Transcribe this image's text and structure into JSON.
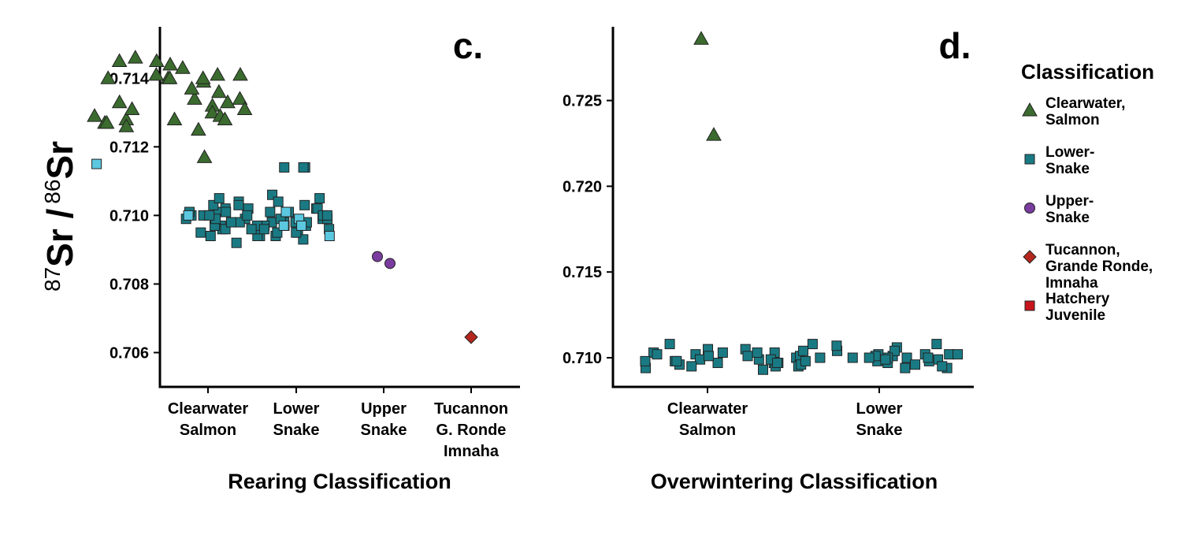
{
  "y_label": {
    "iso_a": "87",
    "sr_a": "Sr /",
    "iso_b": "86",
    "sr_b": "Sr"
  },
  "legend": {
    "title": "Classification",
    "items": [
      {
        "label": "Clearwater,\nSalmon",
        "shape": "triangle",
        "color": "#3b6b2f"
      },
      {
        "label": "Lower-\nSnake",
        "shape": "square",
        "color": "#1a7a84"
      },
      {
        "label": "Upper-\nSnake",
        "shape": "circle",
        "color": "#7a3c9e"
      },
      {
        "label": "Tucannon,\nGrande Ronde,\nImnaha",
        "shape": "diamond",
        "color": "#b5271e"
      },
      {
        "label": "Hatchery\nJuvenile",
        "shape": "square",
        "color": "#c8141c"
      }
    ]
  },
  "chart_data": [
    {
      "type": "scatter",
      "panel_label": "c.",
      "xlabel": "Rearing Classification",
      "ylabel": "87Sr / 86Sr",
      "categories": [
        "Clearwater\nSalmon",
        "Lower\nSnake",
        "Upper\nSnake",
        "Tucannon\nG. Ronde\nImnaha"
      ],
      "ylim": [
        0.705,
        0.7155
      ],
      "yticks": [
        "0.706",
        "0.708",
        "0.710",
        "0.712",
        "0.714"
      ],
      "series": [
        {
          "shape": "triangle",
          "color": "#3b6b2f",
          "points": [
            [
              1,
              0.7144
            ],
            [
              1,
              0.7134
            ],
            [
              1,
              0.7128
            ],
            [
              1,
              0.7132
            ],
            [
              1,
              0.7125
            ],
            [
              1,
              0.7117
            ],
            [
              1,
              0.7141
            ],
            [
              1,
              0.7143
            ],
            [
              1,
              0.7145
            ],
            [
              1,
              0.7146
            ],
            [
              1,
              0.714
            ],
            [
              1,
              0.7145
            ],
            [
              1,
              0.714
            ],
            [
              1,
              0.714
            ],
            [
              1,
              0.7141
            ],
            [
              1,
              0.7139
            ],
            [
              1,
              0.7141
            ],
            [
              1,
              0.714
            ],
            [
              1,
              0.7136
            ],
            [
              1,
              0.7134
            ],
            [
              1,
              0.7133
            ],
            [
              1,
              0.713
            ],
            [
              1,
              0.7129
            ],
            [
              1,
              0.7128
            ],
            [
              1,
              0.7127
            ],
            [
              1,
              0.7133
            ],
            [
              1,
              0.7131
            ],
            [
              1,
              0.7129
            ],
            [
              1,
              0.7127
            ],
            [
              1,
              0.7126
            ],
            [
              1,
              0.7131
            ],
            [
              1,
              0.7128
            ],
            [
              1,
              0.7137
            ]
          ]
        },
        {
          "shape": "square",
          "color": "#1a7a84",
          "points": [
            [
              2,
              0.7106
            ],
            [
              2,
              0.7104
            ],
            [
              2,
              0.7102
            ],
            [
              2,
              0.7101
            ],
            [
              2,
              0.71
            ],
            [
              2,
              0.7099
            ],
            [
              2,
              0.7098
            ],
            [
              2,
              0.7097
            ],
            [
              2,
              0.7096
            ],
            [
              2,
              0.7095
            ],
            [
              2,
              0.7094
            ],
            [
              2,
              0.7093
            ],
            [
              2,
              0.7103
            ],
            [
              2,
              0.7101
            ],
            [
              2,
              0.7099
            ],
            [
              2,
              0.7098
            ],
            [
              2,
              0.7097
            ],
            [
              2,
              0.7095
            ],
            [
              2,
              0.7094
            ],
            [
              2,
              0.7092
            ],
            [
              2,
              0.7102
            ],
            [
              2,
              0.71
            ],
            [
              2,
              0.7099
            ],
            [
              2,
              0.7097
            ],
            [
              2,
              0.7096
            ],
            [
              2,
              0.7094
            ],
            [
              2,
              0.7102
            ],
            [
              2,
              0.7101
            ],
            [
              2,
              0.7099
            ],
            [
              2,
              0.7098
            ],
            [
              2,
              0.7097
            ],
            [
              2,
              0.7096
            ],
            [
              2,
              0.7094
            ],
            [
              2,
              0.7103
            ],
            [
              2,
              0.7101
            ],
            [
              2,
              0.71
            ],
            [
              2,
              0.7098
            ],
            [
              2,
              0.7096
            ],
            [
              2,
              0.7095
            ],
            [
              2,
              0.7104
            ],
            [
              2,
              0.7102
            ],
            [
              2,
              0.71
            ],
            [
              2,
              0.7098
            ],
            [
              2,
              0.7097
            ],
            [
              2,
              0.7095
            ],
            [
              2,
              0.7105
            ],
            [
              2,
              0.7103
            ],
            [
              2,
              0.7101
            ],
            [
              2,
              0.7099
            ],
            [
              2,
              0.7097
            ],
            [
              2,
              0.7096
            ],
            [
              2,
              0.7105
            ],
            [
              2,
              0.71
            ],
            [
              2,
              0.7098
            ],
            [
              2,
              0.7096
            ],
            [
              2,
              0.71
            ],
            [
              2,
              0.7099
            ],
            [
              2,
              0.7114
            ],
            [
              2,
              0.7114
            ],
            [
              2,
              0.7114
            ]
          ]
        },
        {
          "shape": "square",
          "color": "#5bc8e0",
          "points": [
            [
              1,
              0.7115
            ],
            [
              2,
              0.71
            ],
            [
              2,
              0.7101
            ],
            [
              2,
              0.7097
            ],
            [
              2,
              0.7094
            ],
            [
              2,
              0.7099
            ],
            [
              2,
              0.7097
            ]
          ]
        },
        {
          "shape": "circle",
          "color": "#7a3c9e",
          "points": [
            [
              3,
              0.7088
            ],
            [
              3,
              0.7086
            ]
          ]
        },
        {
          "shape": "diamond",
          "color": "#b5271e",
          "points": [
            [
              4,
              0.70645
            ]
          ]
        }
      ]
    },
    {
      "type": "scatter",
      "panel_label": "d.",
      "xlabel": "Overwintering Classification",
      "ylabel": "",
      "categories": [
        "Clearwater\nSalmon",
        "Lower\nSnake"
      ],
      "ylim": [
        0.7083,
        0.7293
      ],
      "yticks": [
        "0.710",
        "0.715",
        "0.720",
        "0.725"
      ],
      "series": [
        {
          "shape": "triangle",
          "color": "#3b6b2f",
          "points": [
            [
              1,
              0.7286
            ],
            [
              1,
              0.723
            ]
          ]
        },
        {
          "shape": "square",
          "color": "#1a7a84",
          "points": [
            [
              2,
              0.7102
            ],
            [
              2,
              0.71
            ],
            [
              2,
              0.7098
            ],
            [
              2,
              0.7096
            ],
            [
              2,
              0.7094
            ],
            [
              2,
              0.7103
            ],
            [
              2,
              0.7101
            ],
            [
              2,
              0.7099
            ],
            [
              2,
              0.7097
            ],
            [
              2,
              0.7108
            ],
            [
              2,
              0.7106
            ],
            [
              2,
              0.7104
            ],
            [
              2,
              0.7102
            ],
            [
              2,
              0.71
            ],
            [
              2,
              0.7098
            ],
            [
              2,
              0.7105
            ],
            [
              2,
              0.7103
            ],
            [
              2,
              0.7101
            ],
            [
              2,
              0.7099
            ],
            [
              2,
              0.7097
            ],
            [
              2,
              0.7095
            ],
            [
              2,
              0.7107
            ],
            [
              2,
              0.7104
            ],
            [
              2,
              0.7102
            ],
            [
              2,
              0.71
            ],
            [
              2,
              0.7098
            ],
            [
              2,
              0.7096
            ],
            [
              2,
              0.7094
            ],
            [
              2,
              0.7108
            ],
            [
              2,
              0.7103
            ],
            [
              2,
              0.7101
            ],
            [
              2,
              0.7099
            ],
            [
              2,
              0.7097
            ],
            [
              2,
              0.7095
            ],
            [
              2,
              0.7093
            ],
            [
              2,
              0.7102
            ],
            [
              2,
              0.71
            ],
            [
              2,
              0.7098
            ],
            [
              2,
              0.7096
            ],
            [
              2,
              0.7094
            ],
            [
              2,
              0.7104
            ],
            [
              2,
              0.7102
            ],
            [
              2,
              0.71
            ],
            [
              2,
              0.7097
            ],
            [
              2,
              0.7095
            ],
            [
              2,
              0.7108
            ],
            [
              2,
              0.7105
            ],
            [
              2,
              0.7103
            ],
            [
              2,
              0.7101
            ],
            [
              2,
              0.7099
            ],
            [
              2,
              0.7097
            ],
            [
              2,
              0.7095
            ],
            [
              2,
              0.7102
            ],
            [
              2,
              0.71
            ],
            [
              2,
              0.7098
            ],
            [
              2,
              0.7101
            ],
            [
              2,
              0.7099
            ],
            [
              2,
              0.71
            ],
            [
              2,
              0.7098
            ]
          ]
        }
      ]
    }
  ]
}
